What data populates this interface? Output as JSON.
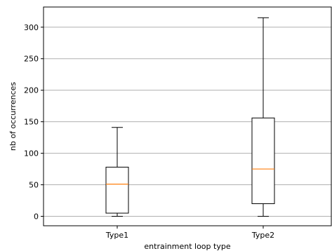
{
  "chart_data": {
    "type": "boxplot",
    "title": "",
    "xlabel": "entrainment loop type",
    "ylabel": "nb of occurrences",
    "categories": [
      "Type1",
      "Type2"
    ],
    "boxes": [
      {
        "name": "Type1",
        "whisker_low": 0,
        "q1": 5,
        "median": 51,
        "q3": 78,
        "whisker_high": 141
      },
      {
        "name": "Type2",
        "whisker_low": 0,
        "q1": 20,
        "median": 75,
        "q3": 156,
        "whisker_high": 315
      }
    ],
    "ylim": [
      -15,
      332
    ],
    "yticks": [
      0,
      50,
      100,
      150,
      200,
      250,
      300
    ],
    "grid": "horizontal",
    "colors": {
      "box": "#000000",
      "median": "#ff7f0e",
      "grid": "#b0b0b0"
    }
  }
}
